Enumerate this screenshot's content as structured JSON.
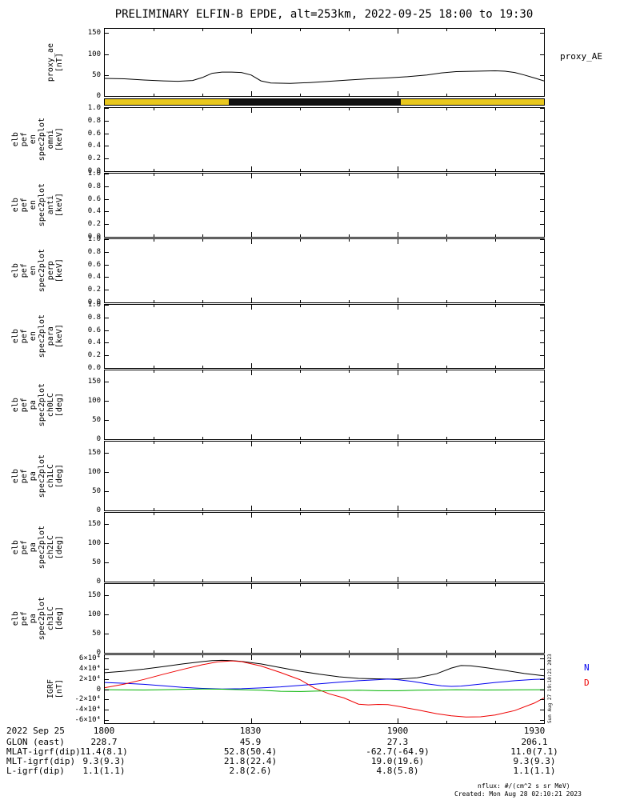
{
  "title": "PRELIMINARY ELFIN-B EPDE, alt=253km, 2022-09-25 18:00 to 19:30",
  "right_labels": {
    "proxy": "proxy_AE",
    "igrf_n": "N",
    "igrf_d": "D"
  },
  "watermark": "Sun Aug 27 19:10:21 2023",
  "notes": {
    "units": "nflux: #/(cm^2 s sr MeV)",
    "created": "Created: Mon Aug 28 02:10:21 2023"
  },
  "colors": {
    "bar_yellow": "#e9c81f",
    "bar_black": "#111111",
    "igrf_black": "#000000",
    "igrf_n_blue": "#0000ee",
    "igrf_d_red": "#ee0000",
    "igrf_green": "#00b300"
  },
  "time_axis": {
    "ticks": [
      "1800",
      "1830",
      "1900",
      "1930"
    ],
    "start": "18:00",
    "end": "19:30"
  },
  "panels": [
    {
      "id": "proxy",
      "label_lines": [
        "proxy_ae",
        "[nT]"
      ],
      "ylim": [
        0,
        160
      ],
      "yticks": [
        {
          "label": "0",
          "v": 0
        },
        {
          "label": "50",
          "v": 50
        },
        {
          "label": "100",
          "v": 100
        },
        {
          "label": "150",
          "v": 150
        }
      ],
      "chart": 0
    },
    {
      "id": "bar",
      "label_lines": [],
      "bar": true,
      "chart": 1
    },
    {
      "id": "omni",
      "label_lines": [
        "elb",
        "pef",
        "en",
        "spec2plot",
        "omni",
        "[keV]"
      ],
      "ylim": [
        0,
        1
      ],
      "yticks": [
        {
          "label": "0.0",
          "v": 0
        },
        {
          "label": "0.2",
          "v": 0.2
        },
        {
          "label": "0.4",
          "v": 0.4
        },
        {
          "label": "0.6",
          "v": 0.6
        },
        {
          "label": "0.8",
          "v": 0.8
        },
        {
          "label": "1.0",
          "v": 1
        }
      ]
    },
    {
      "id": "anti",
      "label_lines": [
        "elb",
        "pef",
        "en",
        "spec2plot",
        "anti",
        "[keV]"
      ],
      "ylim": [
        0,
        1
      ],
      "yticks": [
        {
          "label": "0.0",
          "v": 0
        },
        {
          "label": "0.2",
          "v": 0.2
        },
        {
          "label": "0.4",
          "v": 0.4
        },
        {
          "label": "0.6",
          "v": 0.6
        },
        {
          "label": "0.8",
          "v": 0.8
        },
        {
          "label": "1.0",
          "v": 1
        }
      ]
    },
    {
      "id": "perp",
      "label_lines": [
        "elb",
        "pef",
        "en",
        "spec2plot",
        "perp",
        "[keV]"
      ],
      "ylim": [
        0,
        1
      ],
      "yticks": [
        {
          "label": "0.0",
          "v": 0
        },
        {
          "label": "0.2",
          "v": 0.2
        },
        {
          "label": "0.4",
          "v": 0.4
        },
        {
          "label": "0.6",
          "v": 0.6
        },
        {
          "label": "0.8",
          "v": 0.8
        },
        {
          "label": "1.0",
          "v": 1
        }
      ]
    },
    {
      "id": "para",
      "label_lines": [
        "elb",
        "pef",
        "en",
        "spec2plot",
        "para",
        "[keV]"
      ],
      "ylim": [
        0,
        1
      ],
      "yticks": [
        {
          "label": "0.0",
          "v": 0
        },
        {
          "label": "0.2",
          "v": 0.2
        },
        {
          "label": "0.4",
          "v": 0.4
        },
        {
          "label": "0.6",
          "v": 0.6
        },
        {
          "label": "0.8",
          "v": 0.8
        },
        {
          "label": "1.0",
          "v": 1
        }
      ]
    },
    {
      "id": "ch0lc",
      "label_lines": [
        "elb",
        "pef",
        "pa",
        "spec2plot",
        "ch0LC",
        "[deg]"
      ],
      "ylim": [
        0,
        180
      ],
      "yticks": [
        {
          "label": "0",
          "v": 0
        },
        {
          "label": "50",
          "v": 50
        },
        {
          "label": "100",
          "v": 100
        },
        {
          "label": "150",
          "v": 150
        }
      ]
    },
    {
      "id": "ch1lc",
      "label_lines": [
        "elb",
        "pef",
        "pa",
        "spec2plot",
        "ch1LC",
        "[deg]"
      ],
      "ylim": [
        0,
        180
      ],
      "yticks": [
        {
          "label": "0",
          "v": 0
        },
        {
          "label": "50",
          "v": 50
        },
        {
          "label": "100",
          "v": 100
        },
        {
          "label": "150",
          "v": 150
        }
      ]
    },
    {
      "id": "ch2lc",
      "label_lines": [
        "elb",
        "pef",
        "pa",
        "spec2plot",
        "ch2LC",
        "[deg]"
      ],
      "ylim": [
        0,
        180
      ],
      "yticks": [
        {
          "label": "0",
          "v": 0
        },
        {
          "label": "50",
          "v": 50
        },
        {
          "label": "100",
          "v": 100
        },
        {
          "label": "150",
          "v": 150
        }
      ]
    },
    {
      "id": "ch3lc",
      "label_lines": [
        "elb",
        "pef",
        "pa",
        "spec2plot",
        "ch3LC",
        "[deg]"
      ],
      "ylim": [
        0,
        180
      ],
      "yticks": [
        {
          "label": "0",
          "v": 0
        },
        {
          "label": "50",
          "v": 50
        },
        {
          "label": "100",
          "v": 100
        },
        {
          "label": "150",
          "v": 150
        }
      ]
    },
    {
      "id": "igrf",
      "label_lines": [
        "IGRF",
        "[nT]"
      ],
      "ylim": [
        -66000,
        66000
      ],
      "yticks": [
        {
          "label": "6×10⁴",
          "v": 60000
        },
        {
          "label": "4×10⁴",
          "v": 40000
        },
        {
          "label": "2×10⁴",
          "v": 20000
        },
        {
          "label": "0",
          "v": 0
        },
        {
          "label": "-2×10⁴",
          "v": -20000
        },
        {
          "label": "-4×10⁴",
          "v": -40000
        },
        {
          "label": "-6×10⁴",
          "v": -60000
        }
      ],
      "chart": 2
    }
  ],
  "footer_rows": [
    {
      "label": "2022 Sep 25",
      "values": [
        "1800",
        "1830",
        "1900",
        "1930"
      ]
    },
    {
      "label": "GLON (east)",
      "values": [
        "228.7",
        "45.9",
        "27.3",
        "206.1"
      ]
    },
    {
      "label": "MLAT-igrf(dip)",
      "values": [
        "11.4(8.1)",
        "52.8(50.4)",
        "-62.7(-64.9)",
        "11.0(7.1)"
      ]
    },
    {
      "label": "MLT-igrf(dip)",
      "values": [
        "9.3(9.3)",
        "21.8(22.4)",
        "19.0(19.6)",
        "9.3(9.3)"
      ]
    },
    {
      "label": "L-igrf(dip)",
      "values": [
        "1.1(1.1)",
        "2.8(2.6)",
        "4.8(5.8)",
        "1.1(1.1)"
      ]
    }
  ],
  "chart_data": [
    {
      "type": "line",
      "name": "proxy_AE",
      "ylabel": "proxy_ae [nT]",
      "ylim": [
        0,
        160
      ],
      "x_units": "minutes after 2022-09-25/18:00",
      "xlim": [
        0,
        90
      ],
      "points": [
        [
          0,
          42
        ],
        [
          4,
          41
        ],
        [
          8,
          38
        ],
        [
          12,
          36
        ],
        [
          15,
          35
        ],
        [
          18,
          37
        ],
        [
          20,
          44
        ],
        [
          22,
          54
        ],
        [
          24,
          57
        ],
        [
          26,
          57
        ],
        [
          28,
          56
        ],
        [
          30,
          50
        ],
        [
          32,
          36
        ],
        [
          34,
          31
        ],
        [
          38,
          30
        ],
        [
          42,
          32
        ],
        [
          46,
          35
        ],
        [
          50,
          38
        ],
        [
          54,
          41
        ],
        [
          58,
          43
        ],
        [
          62,
          46
        ],
        [
          66,
          50
        ],
        [
          69,
          55
        ],
        [
          72,
          58
        ],
        [
          76,
          59
        ],
        [
          80,
          60
        ],
        [
          82,
          59
        ],
        [
          84,
          56
        ],
        [
          86,
          50
        ],
        [
          88,
          43
        ],
        [
          90,
          36
        ]
      ]
    },
    {
      "type": "bar",
      "name": "science-zone availability bar",
      "xlim": [
        0,
        90
      ],
      "segments": [
        {
          "color": "#e9c81f",
          "x0": 0,
          "x1": 90
        },
        {
          "color": "#111111",
          "x0": 25.4,
          "x1": 60.6
        }
      ]
    },
    {
      "type": "line",
      "name": "IGRF",
      "ylabel": "IGRF [nT]",
      "ylim": [
        -66000,
        66000
      ],
      "x_units": "minutes after 2022-09-25/18:00",
      "xlim": [
        0,
        90
      ],
      "series": [
        {
          "name": "black",
          "color": "#000000",
          "points": [
            [
              0,
              32000
            ],
            [
              4,
              35000
            ],
            [
              8,
              39000
            ],
            [
              12,
              44000
            ],
            [
              16,
              49000
            ],
            [
              20,
              53500
            ],
            [
              22,
              55500
            ],
            [
              24,
              56000
            ],
            [
              26,
              55500
            ],
            [
              28,
              54000
            ],
            [
              32,
              49000
            ],
            [
              36,
              42000
            ],
            [
              40,
              35000
            ],
            [
              44,
              29000
            ],
            [
              48,
              24000
            ],
            [
              52,
              21000
            ],
            [
              56,
              20000
            ],
            [
              60,
              19500
            ],
            [
              64,
              22000
            ],
            [
              68,
              30000
            ],
            [
              71,
              41000
            ],
            [
              73,
              46000
            ],
            [
              75,
              45500
            ],
            [
              78,
              42000
            ],
            [
              82,
              36500
            ],
            [
              86,
              30500
            ],
            [
              90,
              26000
            ]
          ]
        },
        {
          "name": "N",
          "color": "#0000ee",
          "points": [
            [
              0,
              13000
            ],
            [
              4,
              11500
            ],
            [
              8,
              9500
            ],
            [
              12,
              6500
            ],
            [
              16,
              3500
            ],
            [
              20,
              1500
            ],
            [
              24,
              500
            ],
            [
              28,
              1000
            ],
            [
              32,
              2500
            ],
            [
              36,
              4500
            ],
            [
              40,
              7500
            ],
            [
              44,
              10500
            ],
            [
              48,
              13500
            ],
            [
              52,
              16500
            ],
            [
              56,
              18500
            ],
            [
              58,
              19500
            ],
            [
              60,
              18500
            ],
            [
              63,
              15000
            ],
            [
              66,
              10500
            ],
            [
              69,
              6500
            ],
            [
              71,
              5500
            ],
            [
              73,
              6000
            ],
            [
              76,
              9000
            ],
            [
              80,
              13000
            ],
            [
              84,
              16500
            ],
            [
              88,
              19000
            ],
            [
              90,
              19500
            ]
          ]
        },
        {
          "name": "D",
          "color": "#ee0000",
          "points": [
            [
              0,
              3000
            ],
            [
              4,
              10000
            ],
            [
              8,
              19000
            ],
            [
              12,
              29000
            ],
            [
              16,
              38500
            ],
            [
              20,
              47500
            ],
            [
              23,
              53000
            ],
            [
              26,
              55000
            ],
            [
              28,
              53500
            ],
            [
              32,
              45000
            ],
            [
              36,
              32500
            ],
            [
              40,
              18500
            ],
            [
              43,
              2000
            ],
            [
              46,
              -9000
            ],
            [
              49,
              -17000
            ],
            [
              52,
              -29000
            ],
            [
              54,
              -30500
            ],
            [
              56,
              -29500
            ],
            [
              58,
              -30000
            ],
            [
              60,
              -33000
            ],
            [
              64,
              -40000
            ],
            [
              68,
              -47500
            ],
            [
              71,
              -51500
            ],
            [
              74,
              -54000
            ],
            [
              77,
              -53500
            ],
            [
              80,
              -50000
            ],
            [
              84,
              -41500
            ],
            [
              88,
              -27000
            ],
            [
              90,
              -17000
            ]
          ]
        },
        {
          "name": "green",
          "color": "#00b300",
          "points": [
            [
              0,
              -1000
            ],
            [
              8,
              -1500
            ],
            [
              16,
              -500
            ],
            [
              20,
              500
            ],
            [
              24,
              0
            ],
            [
              28,
              -1000
            ],
            [
              32,
              -2000
            ],
            [
              36,
              -4000
            ],
            [
              40,
              -4500
            ],
            [
              44,
              -3500
            ],
            [
              48,
              -2500
            ],
            [
              52,
              -2000
            ],
            [
              56,
              -3000
            ],
            [
              60,
              -3000
            ],
            [
              64,
              -2000
            ],
            [
              68,
              -1500
            ],
            [
              72,
              -1000
            ],
            [
              78,
              -1500
            ],
            [
              84,
              -1200
            ],
            [
              90,
              -1000
            ]
          ]
        }
      ]
    }
  ]
}
